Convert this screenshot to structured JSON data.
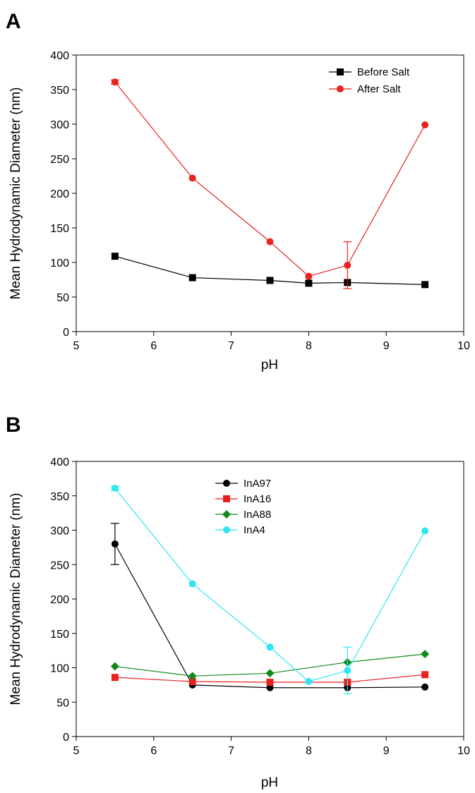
{
  "chart_data": [
    {
      "panel": "A",
      "type": "line",
      "title": "",
      "xlabel": "pH",
      "ylabel": "Mean Hydrodynamic Diameter (nm)",
      "xlim": [
        5,
        10
      ],
      "ylim": [
        0,
        400
      ],
      "xticks": [
        "5",
        "6",
        "7",
        "8",
        "9",
        "10"
      ],
      "yticks": [
        "0",
        "50",
        "100",
        "150",
        "200",
        "250",
        "300",
        "350",
        "400"
      ],
      "legend_position": "top-right",
      "series": [
        {
          "name": "Before Salt",
          "color": "#000000",
          "marker": "square",
          "x": [
            5.5,
            6.5,
            7.5,
            8.0,
            8.5,
            9.5
          ],
          "y": [
            109,
            78,
            74,
            70,
            71,
            68
          ],
          "err": [
            0,
            0,
            0,
            0,
            0,
            0
          ]
        },
        {
          "name": "After Salt",
          "color": "#e8221f",
          "marker": "circle",
          "x": [
            5.5,
            6.5,
            7.5,
            8.0,
            8.5,
            9.5
          ],
          "y": [
            361,
            222,
            130,
            80,
            96,
            299
          ],
          "err": [
            3,
            0,
            0,
            0,
            34,
            0
          ]
        }
      ]
    },
    {
      "panel": "B",
      "type": "line",
      "title": "",
      "xlabel": "pH",
      "ylabel": "Mean Hydrodynamic Diameter (nm)",
      "xlim": [
        5,
        10
      ],
      "ylim": [
        0,
        400
      ],
      "xticks": [
        "5",
        "6",
        "7",
        "8",
        "9",
        "10"
      ],
      "yticks": [
        "0",
        "50",
        "100",
        "150",
        "200",
        "250",
        "300",
        "350",
        "400"
      ],
      "legend_position": "top-center",
      "series": [
        {
          "name": "InA97",
          "color": "#000000",
          "marker": "circle",
          "x": [
            5.5,
            6.5,
            7.5,
            8.5,
            9.5
          ],
          "y": [
            280,
            75,
            71,
            71,
            72
          ],
          "err": [
            30,
            0,
            0,
            0,
            0
          ]
        },
        {
          "name": "InA16",
          "color": "#e8221f",
          "marker": "square",
          "x": [
            5.5,
            6.5,
            7.5,
            8.5,
            9.5
          ],
          "y": [
            86,
            80,
            79,
            79,
            90
          ],
          "err": [
            0,
            0,
            0,
            0,
            0
          ]
        },
        {
          "name": "InA88",
          "color": "#138a1c",
          "marker": "diamond",
          "x": [
            5.5,
            6.5,
            7.5,
            8.5,
            9.5
          ],
          "y": [
            102,
            88,
            92,
            108,
            120
          ],
          "err": [
            0,
            0,
            0,
            0,
            0
          ]
        },
        {
          "name": "InA4",
          "color": "#2ee6f0",
          "marker": "circle",
          "x": [
            5.5,
            6.5,
            7.5,
            8.0,
            8.5,
            9.5
          ],
          "y": [
            361,
            222,
            130,
            80,
            96,
            299
          ],
          "err": [
            3,
            0,
            0,
            0,
            34,
            0
          ]
        }
      ]
    }
  ],
  "panels": {
    "a_label": "A",
    "b_label": "B"
  }
}
